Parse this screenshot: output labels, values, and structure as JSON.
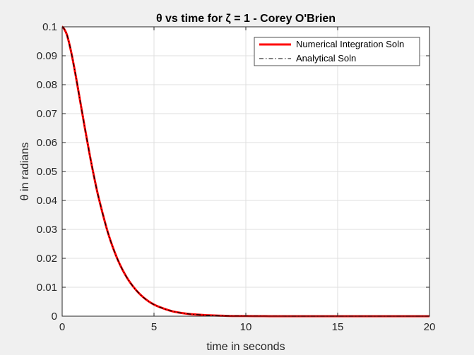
{
  "chart_data": {
    "type": "line",
    "title": "θ vs time for ζ = 1 - Corey O'Brien",
    "xlabel": "time in seconds",
    "ylabel": "θ in radians",
    "xlim": [
      0,
      20
    ],
    "ylim": [
      0,
      0.1
    ],
    "xticks": [
      "0",
      "5",
      "10",
      "15",
      "20"
    ],
    "yticks": [
      "0",
      "0.01",
      "0.02",
      "0.03",
      "0.04",
      "0.05",
      "0.06",
      "0.07",
      "0.08",
      "0.09",
      "0.1"
    ],
    "grid": true,
    "legend_position": "top-right",
    "x": [
      0,
      0.25,
      0.5,
      0.75,
      1,
      1.25,
      1.5,
      1.75,
      2,
      2.5,
      3,
      3.5,
      4,
      4.5,
      5,
      5.5,
      6,
      6.5,
      7,
      7.5,
      8,
      9,
      10,
      11,
      12,
      14,
      16,
      18,
      20
    ],
    "series": [
      {
        "name": "Numerical Integration Soln",
        "color": "#ff0000",
        "style": "solid",
        "values": [
          0.1,
          0.0974,
          0.091,
          0.0827,
          0.0736,
          0.0645,
          0.0558,
          0.0478,
          0.0406,
          0.0287,
          0.0199,
          0.0136,
          0.0092,
          0.0061,
          0.004,
          0.0027,
          0.0017,
          0.0011,
          0.0007,
          0.0005,
          0.0003,
          0.0001,
          5e-05,
          2e-05,
          1e-05,
          0,
          0,
          0,
          0
        ]
      },
      {
        "name": "Analytical Soln",
        "color": "#000000",
        "style": "dash-dot",
        "values": [
          0.1,
          0.0974,
          0.091,
          0.0827,
          0.0736,
          0.0645,
          0.0558,
          0.0478,
          0.0406,
          0.0287,
          0.0199,
          0.0136,
          0.0092,
          0.0061,
          0.004,
          0.0027,
          0.0017,
          0.0011,
          0.0007,
          0.0005,
          0.0003,
          0.0001,
          5e-05,
          2e-05,
          1e-05,
          0,
          0,
          0,
          0
        ]
      }
    ]
  }
}
